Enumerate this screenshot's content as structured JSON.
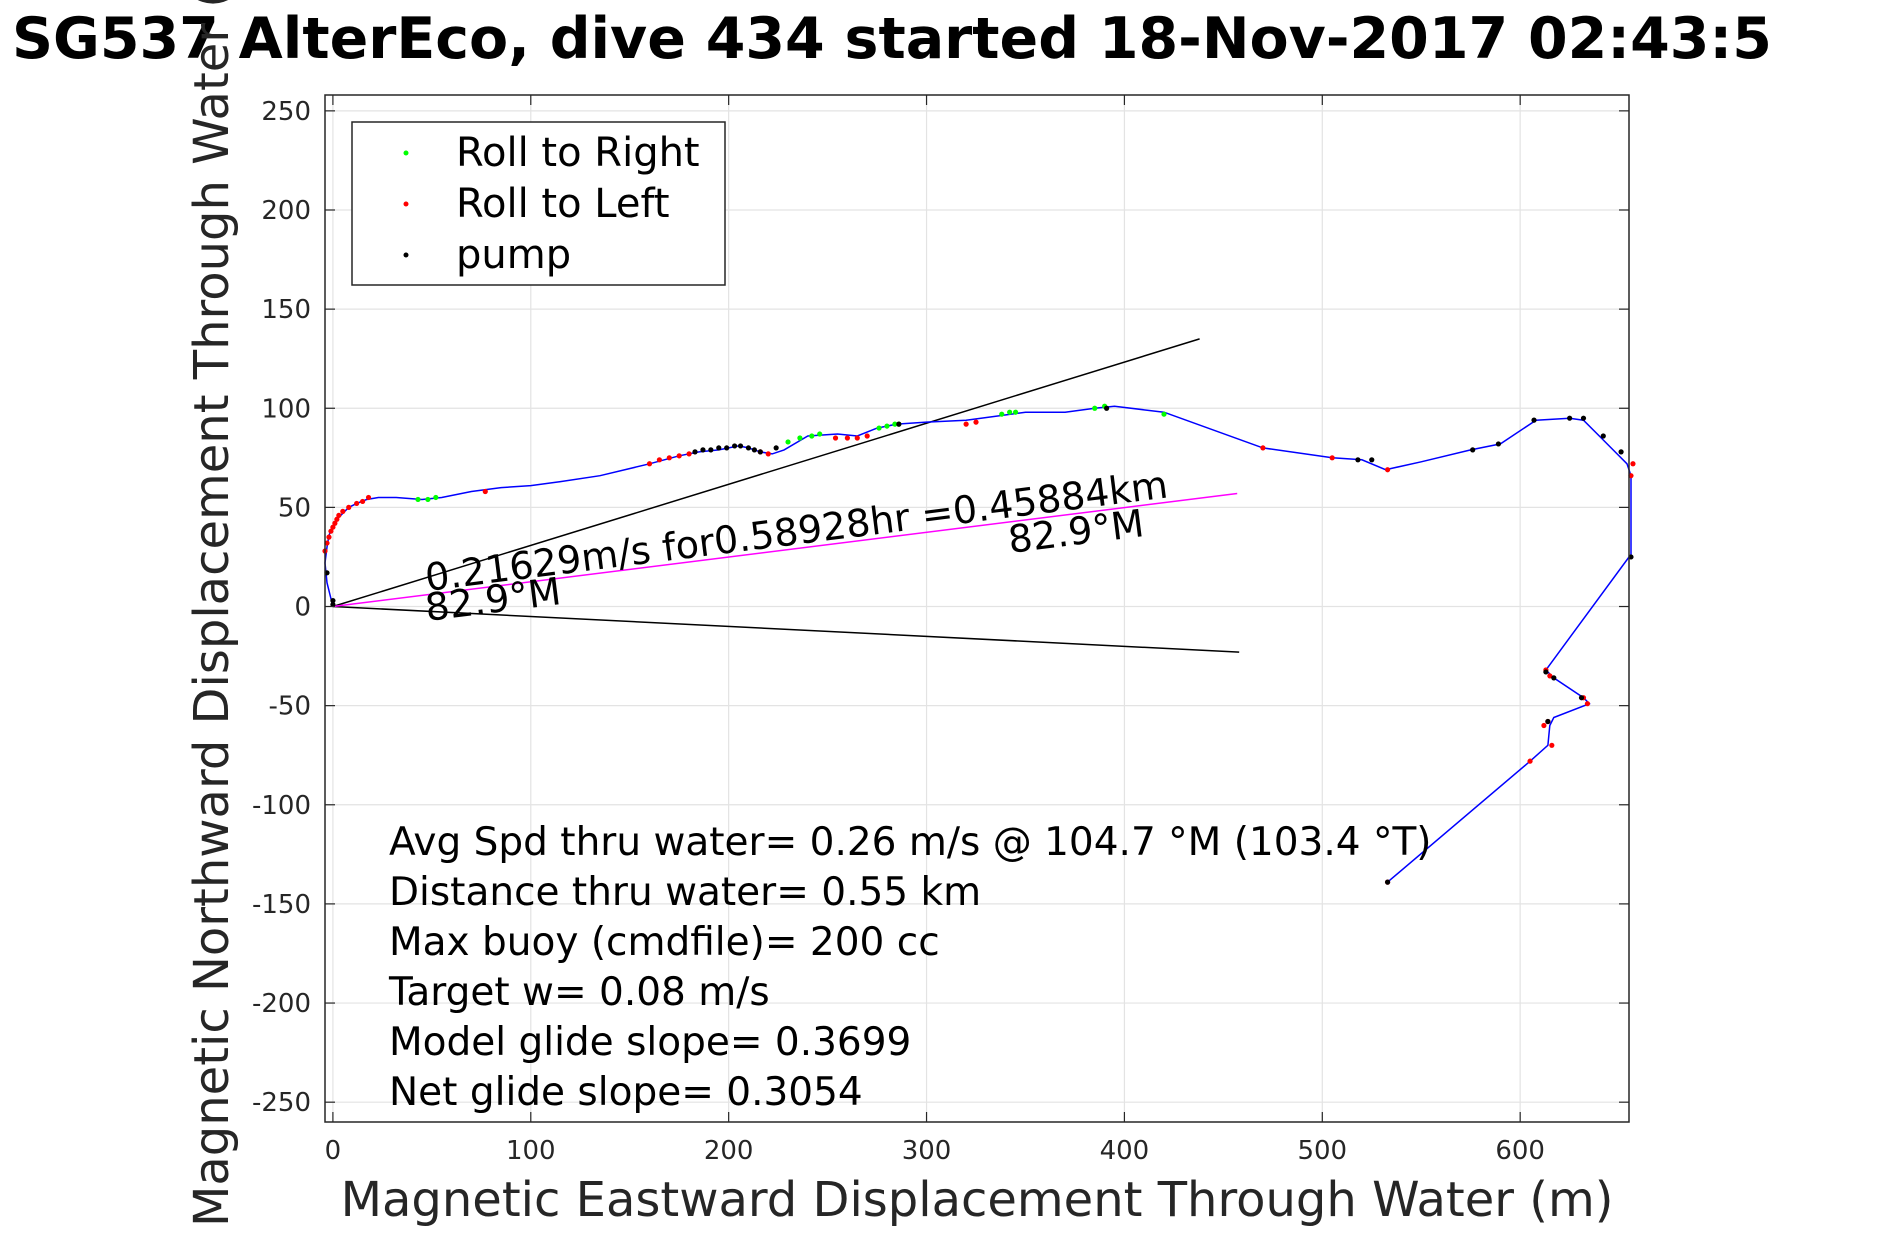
{
  "chart_data": {
    "type": "line",
    "title": "SG537 AlterEco, dive 434 started 18-Nov-2017 02:43:5",
    "xlabel": "Magnetic Eastward Displacement Through Water (m)",
    "ylabel": "Magnetic Northward Displacement Through Water (",
    "xlim": [
      -4,
      655
    ],
    "ylim": [
      -260,
      258
    ],
    "x_ticks": [
      0,
      100,
      200,
      300,
      400,
      500,
      600
    ],
    "y_ticks": [
      250,
      200,
      150,
      100,
      50,
      0,
      -50,
      -100,
      -150,
      -200,
      -250
    ],
    "grid": true,
    "legend_position": "top-left",
    "legend": [
      {
        "label": "Roll to Right",
        "color": "#00ff00"
      },
      {
        "label": "Roll to Left",
        "color": "#ff0000"
      },
      {
        "label": "pump",
        "color": "#000000"
      }
    ],
    "colors": {
      "track": "#0000ff",
      "roll_right": "#00ff00",
      "roll_left": "#ff0000",
      "pump": "#000000",
      "current_line": "#ff00ff",
      "wedge": "#000000"
    },
    "track": {
      "x": [
        0,
        -3,
        -4,
        -3,
        -2,
        0,
        2,
        5,
        8,
        12,
        17,
        23,
        32,
        45,
        55,
        70,
        85,
        100,
        115,
        135,
        160,
        175,
        185,
        195,
        200,
        205,
        210,
        216,
        222,
        228,
        240,
        255,
        265,
        275,
        285,
        300,
        320,
        335,
        350,
        370,
        385,
        395,
        420,
        470,
        505,
        520,
        532,
        550,
        575,
        590,
        608,
        625,
        632,
        640,
        648,
        654,
        656,
        656,
        655,
        613,
        617,
        632,
        635,
        617,
        615,
        614,
        605,
        533
      ],
      "y": [
        0,
        12,
        22,
        30,
        36,
        40,
        44,
        47,
        50,
        52,
        54,
        55,
        55,
        54,
        55,
        58,
        60,
        61,
        63,
        66,
        72,
        76,
        78,
        79,
        80,
        81,
        80,
        78,
        77,
        79,
        86,
        87,
        86,
        90,
        92,
        93,
        94,
        96,
        98,
        98,
        100,
        101,
        98,
        80,
        75,
        74,
        69,
        73,
        79,
        82,
        94,
        95,
        94,
        86,
        78,
        72,
        66,
        26,
        25,
        -32,
        -36,
        -46,
        -49,
        -56,
        -60,
        -70,
        -78,
        -139
      ]
    },
    "roll_right_points": {
      "x": [
        43,
        48,
        52,
        230,
        236,
        242,
        246,
        276,
        280,
        284,
        286,
        338,
        342,
        345,
        385,
        390,
        420
      ],
      "y": [
        54,
        54,
        55,
        83,
        85,
        86,
        87,
        90,
        91,
        92,
        92,
        97,
        98,
        98,
        100,
        101,
        97
      ]
    },
    "roll_left_points": {
      "x": [
        -4,
        -3,
        -2,
        -1,
        0,
        1,
        2,
        3,
        5,
        8,
        12,
        15,
        18,
        77,
        160,
        165,
        170,
        175,
        180,
        216,
        220,
        254,
        260,
        265,
        270,
        320,
        325,
        470,
        505,
        533,
        613,
        615,
        616,
        612,
        614,
        632,
        634,
        605,
        533,
        656,
        657
      ],
      "y": [
        28,
        32,
        35,
        38,
        40,
        42,
        44,
        46,
        48,
        50,
        52,
        53,
        55,
        58,
        72,
        74,
        75,
        76,
        77,
        78,
        77,
        85,
        85,
        85,
        86,
        92,
        93,
        80,
        75,
        69,
        -32,
        -35,
        -70,
        -60,
        -58,
        -46,
        -49,
        -78,
        -139,
        66,
        72
      ]
    },
    "pump_points": {
      "x": [
        -3,
        0,
        0,
        183,
        187,
        191,
        195,
        199,
        203,
        206,
        210,
        213,
        216,
        224,
        286,
        391,
        518,
        525,
        576,
        589,
        607,
        625,
        632,
        642,
        651,
        656,
        613,
        617,
        631,
        614,
        533
      ],
      "y": [
        17,
        3,
        1,
        78,
        79,
        79,
        80,
        80,
        81,
        81,
        80,
        79,
        78,
        80,
        92,
        100,
        74,
        74,
        79,
        82,
        94,
        95,
        95,
        86,
        78,
        25,
        -33,
        -36,
        -46,
        -58,
        -139
      ]
    },
    "current_vector": {
      "x": [
        0,
        457
      ],
      "y": [
        0,
        57
      ]
    },
    "wedge_lines": [
      {
        "x": [
          0,
          438
        ],
        "y": [
          0,
          135
        ]
      },
      {
        "x": [
          0,
          458
        ],
        "y": [
          0,
          -23
        ]
      }
    ],
    "annotations": {
      "current_text": "0.21629m/s for0.58928hr =0.45884km",
      "current_heading_end": "82.9°M",
      "current_heading_start": "82.9°M"
    },
    "stats": [
      "Avg Spd thru water=  0.26 m/s @ 104.7 °M (103.4 °T)",
      "Distance thru water=  0.55 km",
      "Max buoy (cmdfile)= 200 cc",
      "Target w= 0.08 m/s",
      "Model glide slope= 0.3699",
      "Net glide slope= 0.3054"
    ]
  }
}
